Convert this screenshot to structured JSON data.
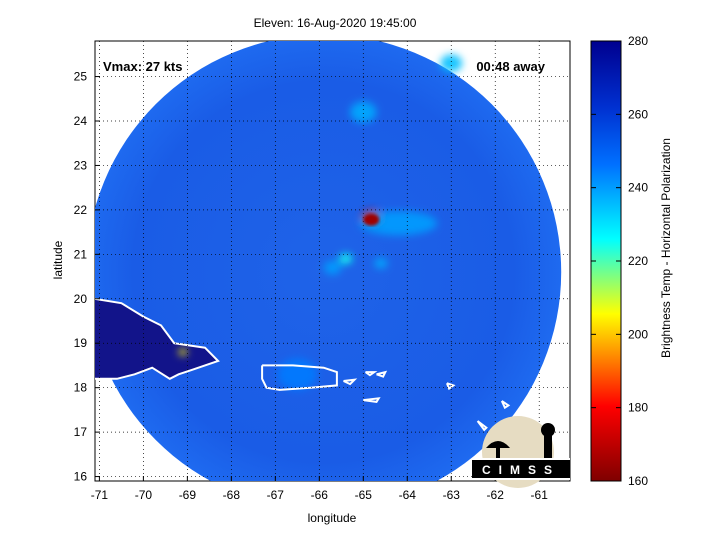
{
  "chart_data": {
    "type": "heatmap",
    "title": "Eleven: 16-Aug-2020 19:45:00",
    "xlabel": "longitude",
    "ylabel": "latitude",
    "xlim": [
      -71.1,
      -60.3
    ],
    "ylim": [
      15.9,
      25.8
    ],
    "xticks": [
      -71,
      -70,
      -69,
      -68,
      -67,
      -66,
      -65,
      -64,
      -63,
      -62,
      -61
    ],
    "yticks": [
      16,
      17,
      18,
      19,
      20,
      21,
      22,
      23,
      24,
      25
    ],
    "grid": true,
    "annotations": {
      "vmax": "Vmax: 27 kts",
      "away": "00:48 away"
    },
    "colorbar": {
      "label": "Brightness Temp - Horizontal Polarization",
      "range": [
        160,
        280
      ],
      "ticks": [
        160,
        180,
        200,
        220,
        240,
        260,
        280
      ],
      "colors": [
        "#7f0000",
        "#ff0000",
        "#ffff00",
        "#00ffff",
        "#0040ff",
        "#00008f"
      ]
    },
    "swath": {
      "center": [
        -65.9,
        20.6
      ],
      "radius_deg": 5.4,
      "background_value": 258
    },
    "features": [
      {
        "lon": -64.8,
        "lat": 21.8,
        "value": 170,
        "size": 0.25
      },
      {
        "lon": -64.2,
        "lat": 21.7,
        "value": 240,
        "size": 0.55
      },
      {
        "lon": -65.4,
        "lat": 20.9,
        "value": 225,
        "size": 0.15
      },
      {
        "lon": -65.7,
        "lat": 20.7,
        "value": 240,
        "size": 0.2
      },
      {
        "lon": -64.6,
        "lat": 20.8,
        "value": 238,
        "size": 0.15
      },
      {
        "lon": -65.0,
        "lat": 24.2,
        "value": 238,
        "size": 0.3
      },
      {
        "lon": -63.0,
        "lat": 25.3,
        "value": 235,
        "size": 0.25
      },
      {
        "lon": -66.5,
        "lat": 18.3,
        "value": 245,
        "size": 0.45
      },
      {
        "lon": -69.1,
        "lat": 18.8,
        "value": 205,
        "size": 0.1
      }
    ],
    "logo_text": "CIMSS"
  }
}
